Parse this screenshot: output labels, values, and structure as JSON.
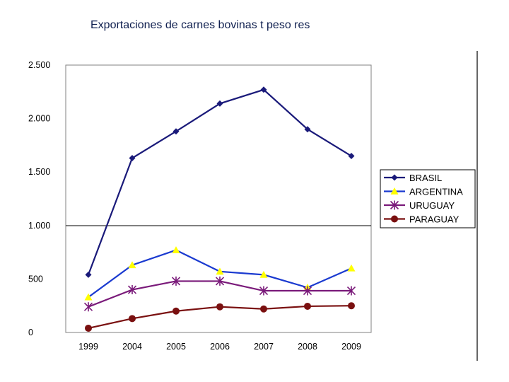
{
  "chart_data": {
    "type": "line",
    "title": "Exportaciones de carnes bovinas t peso res",
    "categories": [
      "1999",
      "2004",
      "2005",
      "2006",
      "2007",
      "2008",
      "2009"
    ],
    "ylim": [
      0,
      2500
    ],
    "yticks": [
      0,
      500,
      1000,
      1500,
      2000,
      2500
    ],
    "ytick_labels": [
      "0",
      "500",
      "1.000",
      "1.500",
      "2.000",
      "2.500"
    ],
    "xlabel": "",
    "ylabel": "",
    "legend_position": "right",
    "series": [
      {
        "name": "BRASIL",
        "color": "#1a1a7a",
        "marker": "diamond",
        "values": [
          540,
          1630,
          1880,
          2140,
          2270,
          1900,
          1650
        ]
      },
      {
        "name": "ARGENTINA",
        "color": "#1a3ad0",
        "marker": "triangle",
        "markerColor": "#ffff00",
        "values": [
          330,
          630,
          770,
          570,
          540,
          420,
          600
        ]
      },
      {
        "name": "URUGUAY",
        "color": "#7a1a7a",
        "marker": "star",
        "values": [
          240,
          400,
          480,
          480,
          390,
          390,
          390
        ]
      },
      {
        "name": "PARAGUAY",
        "color": "#7a1010",
        "marker": "circle",
        "values": [
          40,
          130,
          200,
          240,
          220,
          245,
          250
        ]
      }
    ]
  }
}
